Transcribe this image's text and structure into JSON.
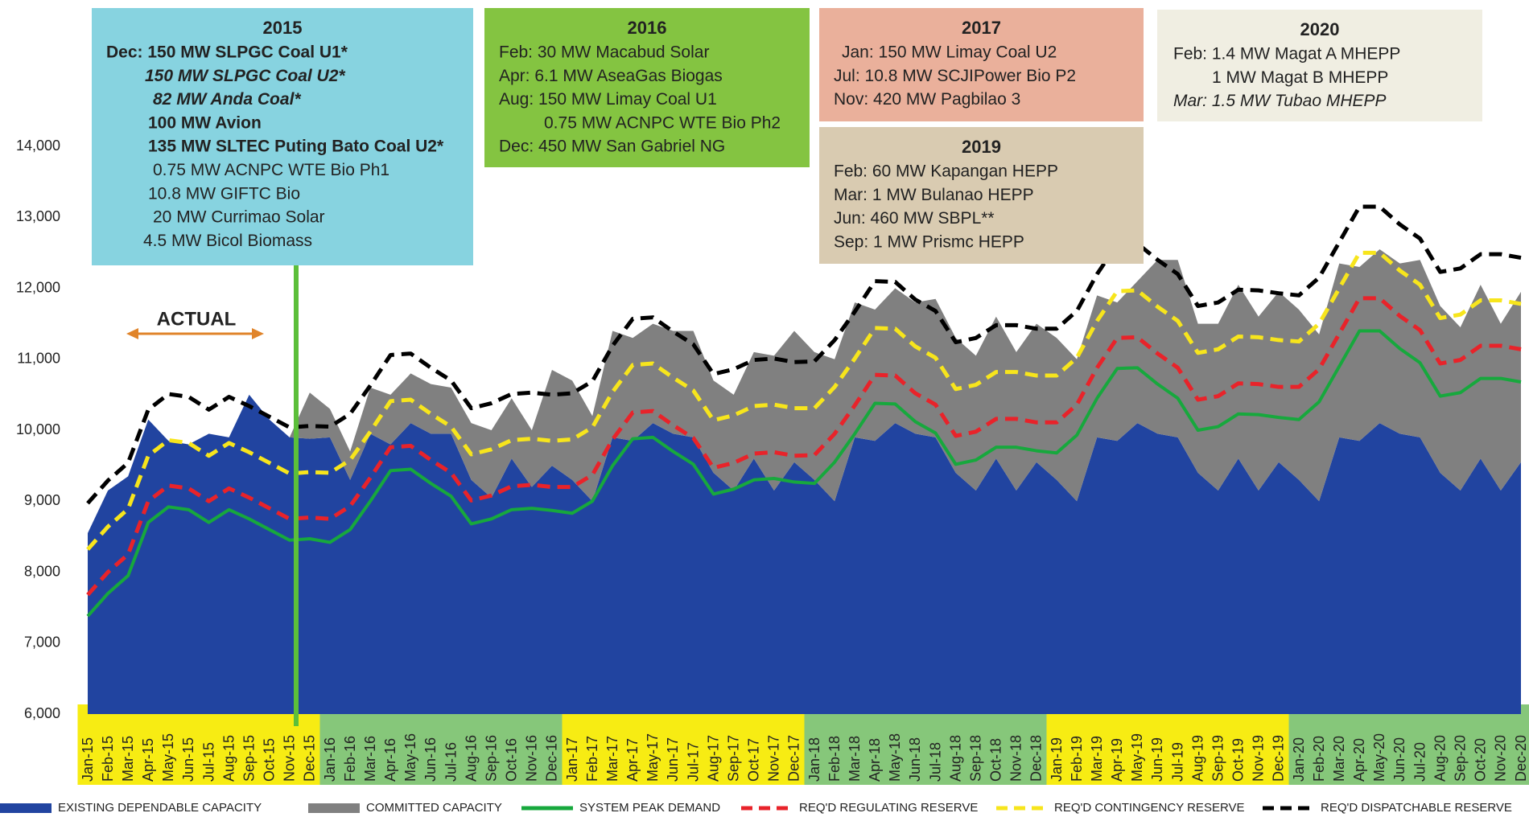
{
  "chart_data": {
    "type": "area",
    "categories": [
      "Jan-15",
      "Feb-15",
      "Mar-15",
      "Apr-15",
      "May-15",
      "Jun-15",
      "Jul-15",
      "Aug-15",
      "Sep-15",
      "Oct-15",
      "Nov-15",
      "Dec-15",
      "Jan-16",
      "Feb-16",
      "Mar-16",
      "Apr-16",
      "May-16",
      "Jun-16",
      "Jul-16",
      "Aug-16",
      "Sep-16",
      "Oct-16",
      "Nov-16",
      "Dec-16",
      "Jan-17",
      "Feb-17",
      "Mar-17",
      "Apr-17",
      "May-17",
      "Jun-17",
      "Jul-17",
      "Aug-17",
      "Sep-17",
      "Oct-17",
      "Nov-17",
      "Dec-17",
      "Jan-18",
      "Feb-18",
      "Mar-18",
      "Apr-18",
      "May-18",
      "Jun-18",
      "Jul-18",
      "Aug-18",
      "Sep-18",
      "Oct-18",
      "Nov-18",
      "Dec-18",
      "Jan-19",
      "Feb-19",
      "Mar-19",
      "Apr-19",
      "May-19",
      "Jun-19",
      "Jul-19",
      "Aug-19",
      "Sep-19",
      "Oct-19",
      "Nov-19",
      "Dec-19",
      "Jan-20",
      "Feb-20",
      "Mar-20",
      "Apr-20",
      "May-20",
      "Jun-20",
      "Jul-20",
      "Aug-20",
      "Sep-20",
      "Oct-20",
      "Nov-20",
      "Dec-20"
    ],
    "series": [
      {
        "name": "EXISTING DEPENDABLE CAPACITY",
        "kind": "area",
        "color": "#2144a0",
        "values": [
          8550,
          9150,
          9350,
          10150,
          9850,
          9800,
          9950,
          9900,
          10500,
          10150,
          9900,
          9880,
          9900,
          9300,
          9950,
          9800,
          10100,
          9950,
          9950,
          9300,
          9050,
          9600,
          9200,
          9500,
          9300,
          9000,
          9900,
          9850,
          10100,
          9950,
          9900,
          9400,
          9150,
          9600,
          9150,
          9550,
          9300,
          9000,
          9900,
          9850,
          10100,
          9950,
          9900,
          9400,
          9150,
          9600,
          9150,
          9550,
          9300,
          9000,
          9900,
          9850,
          10100,
          9950,
          9900,
          9400,
          9150,
          9600,
          9150,
          9550,
          9300,
          9000,
          9900,
          9850,
          10100,
          9950,
          9900,
          9400,
          9150,
          9600,
          9150,
          9550
        ]
      },
      {
        "name": "COMMITTED CAPACITY",
        "kind": "stacked_area",
        "color": "#808080",
        "values": [
          0,
          0,
          0,
          0,
          0,
          0,
          0,
          0,
          0,
          0,
          0,
          650,
          400,
          400,
          650,
          700,
          700,
          700,
          650,
          800,
          950,
          850,
          800,
          1350,
          1400,
          1200,
          1500,
          1450,
          1400,
          1450,
          1500,
          1300,
          1350,
          1500,
          1900,
          1850,
          1800,
          2000,
          1900,
          1850,
          1900,
          1850,
          1950,
          1900,
          1900,
          2000,
          1950,
          1950,
          2000,
          2000,
          2000,
          1950,
          2000,
          2450,
          2500,
          2100,
          2350,
          2450,
          2450,
          2400,
          2400,
          2350,
          2450,
          2450,
          2450,
          2400,
          2500,
          2350,
          2300,
          2450,
          2350,
          2400
        ]
      },
      {
        "name": "SYSTEM PEAK DEMAND",
        "kind": "line",
        "dashed": false,
        "color": "#17a83d",
        "values": [
          7380,
          7700,
          7950,
          8700,
          8920,
          8880,
          8700,
          8880,
          8750,
          8600,
          8450,
          8470,
          8420,
          8600,
          9000,
          9430,
          9450,
          9250,
          9070,
          8680,
          8750,
          8880,
          8900,
          8870,
          8830,
          9000,
          9500,
          9880,
          9900,
          9700,
          9520,
          9100,
          9170,
          9300,
          9320,
          9270,
          9250,
          9550,
          9950,
          10380,
          10370,
          10120,
          9960,
          9520,
          9580,
          9760,
          9760,
          9710,
          9680,
          9930,
          10450,
          10870,
          10880,
          10650,
          10450,
          10000,
          10050,
          10230,
          10220,
          10180,
          10150,
          10400,
          10900,
          11400,
          11400,
          11150,
          10950,
          10480,
          10530,
          10730,
          10730,
          10680
        ]
      },
      {
        "name": "REQ'D REGULATING RESERVE",
        "kind": "line",
        "dashed": true,
        "color": "#e8232a",
        "values": [
          7680,
          8000,
          8250,
          9000,
          9220,
          9180,
          9000,
          9180,
          9050,
          8900,
          8750,
          8770,
          8750,
          8930,
          9330,
          9760,
          9780,
          9580,
          9400,
          9010,
          9080,
          9210,
          9230,
          9200,
          9200,
          9370,
          9870,
          10250,
          10270,
          10070,
          9890,
          9470,
          9540,
          9670,
          9690,
          9640,
          9650,
          9950,
          10350,
          10780,
          10770,
          10520,
          10360,
          9920,
          9980,
          10160,
          10160,
          10110,
          10110,
          10360,
          10880,
          11300,
          11310,
          11080,
          10880,
          10430,
          10480,
          10660,
          10650,
          10610,
          10610,
          10860,
          11360,
          11860,
          11860,
          11610,
          11410,
          10940,
          10990,
          11190,
          11190,
          11140
        ]
      },
      {
        "name": "REQ'D CONTINGENCY RESERVE",
        "kind": "line",
        "dashed": true,
        "color": "#f7e51c",
        "values": [
          8320,
          8640,
          8890,
          9640,
          9860,
          9820,
          9640,
          9820,
          9690,
          9540,
          9390,
          9410,
          9400,
          9580,
          9980,
          10410,
          10430,
          10230,
          10050,
          9660,
          9730,
          9860,
          9880,
          9850,
          9870,
          10040,
          10540,
          10920,
          10940,
          10740,
          10560,
          10140,
          10210,
          10340,
          10360,
          10310,
          10310,
          10610,
          11010,
          11440,
          11430,
          11180,
          11020,
          10580,
          10640,
          10820,
          10820,
          10770,
          10770,
          11020,
          11540,
          11960,
          11970,
          11740,
          11540,
          11090,
          11140,
          11320,
          11310,
          11270,
          11250,
          11500,
          12000,
          12500,
          12500,
          12250,
          12050,
          11580,
          11630,
          11830,
          11830,
          11780
        ]
      },
      {
        "name": "REQ'D DISPATCHABLE RESERVE",
        "kind": "line",
        "dashed": true,
        "color": "#000000",
        "values": [
          8970,
          9290,
          9540,
          10290,
          10510,
          10470,
          10290,
          10470,
          10340,
          10190,
          10040,
          10060,
          10050,
          10230,
          10630,
          11060,
          11080,
          10880,
          10700,
          10310,
          10380,
          10510,
          10530,
          10500,
          10520,
          10690,
          11190,
          11570,
          11590,
          11390,
          11210,
          10790,
          10860,
          10990,
          11010,
          10960,
          10970,
          11270,
          11670,
          12100,
          12090,
          11840,
          11680,
          11240,
          11300,
          11480,
          11480,
          11430,
          11430,
          11680,
          12200,
          12620,
          12630,
          12400,
          12200,
          11750,
          11800,
          11980,
          11970,
          11930,
          11900,
          12150,
          12650,
          13150,
          13150,
          12900,
          12700,
          12230,
          12280,
          12480,
          12480,
          12430
        ]
      }
    ],
    "ylim": [
      6000,
      14000
    ],
    "yticks": [
      {
        "value": 6000,
        "label": "6,000"
      },
      {
        "value": 7000,
        "label": "7,000"
      },
      {
        "value": 8000,
        "label": "8,000"
      },
      {
        "value": 9000,
        "label": "9,000"
      },
      {
        "value": 10000,
        "label": "10,000"
      },
      {
        "value": 11000,
        "label": "11,000"
      },
      {
        "value": 12000,
        "label": "12,000"
      },
      {
        "value": 13000,
        "label": "13,000"
      },
      {
        "value": 14000,
        "label": "14,000"
      }
    ],
    "actual_label": "ACTUAL",
    "annotations": [
      {
        "title": "2015",
        "lines": [
          "Dec: 150 MW SLPGC Coal U1*",
          "150 MW SLPGC Coal U2*",
          "82 MW Anda Coal*",
          "100 MW Avion",
          "135 MW SLTEC Puting Bato Coal U2*",
          "0.75 MW ACNPC WTE Bio Ph1",
          "10.8 MW GIFTC Bio",
          "20 MW Currimao Solar",
          "4.5 MW Bicol Biomass"
        ]
      },
      {
        "title": "2016",
        "lines": [
          "Feb: 30 MW Macabud Solar",
          "Apr: 6.1 MW AseaGas Biogas",
          "Aug: 150 MW Limay Coal U1",
          "0.75 MW ACNPC WTE Bio Ph2",
          "Dec: 450 MW San Gabriel NG"
        ]
      },
      {
        "title": "2017",
        "lines": [
          "Jan: 150 MW Limay Coal U2",
          "Jul: 10.8 MW SCJIPower Bio P2",
          "Nov: 420 MW Pagbilao 3"
        ]
      },
      {
        "title": "2019",
        "lines": [
          "Feb: 60 MW Kapangan HEPP",
          "Mar: 1 MW Bulanao HEPP",
          "Jun: 460 MW SBPL**",
          "Sep: 1 MW Prismc HEPP"
        ]
      },
      {
        "title": "2020",
        "lines": [
          "Feb: 1.4 MW Magat A MHEPP",
          "1 MW Magat B MHEPP",
          "Mar: 1.5 MW Tubao MHEPP"
        ]
      }
    ]
  }
}
